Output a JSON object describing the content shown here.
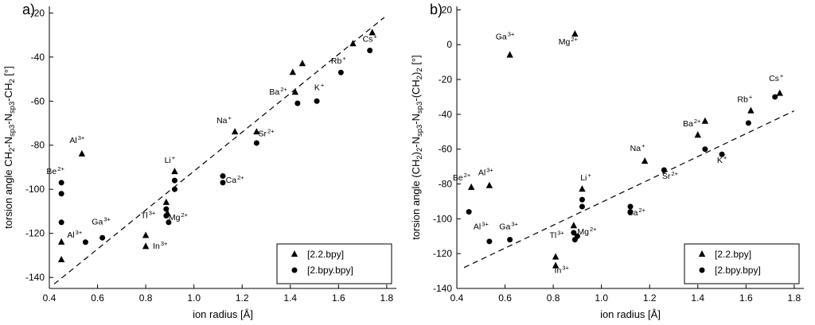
{
  "figure": {
    "background": "#ffffff",
    "foreground": "#000000"
  },
  "chart_data": [
    {
      "type": "scatter",
      "panel_letter": "a)",
      "xlabel": "ion radius [Å]",
      "ylabel_segments": [
        {
          "t": "torsion angle CH"
        },
        {
          "t": "2",
          "sub": true
        },
        {
          "t": "-N"
        },
        {
          "t": "sp3",
          "sub": true
        },
        {
          "t": "-N"
        },
        {
          "t": "sp3",
          "sub": true
        },
        {
          "t": "-CH"
        },
        {
          "t": "2",
          "sub": true
        },
        {
          "t": " [°]"
        }
      ],
      "xlim": [
        0.4,
        1.84
      ],
      "ylim": [
        -145,
        -17
      ],
      "xticks": [
        0.4,
        0.6,
        0.8,
        1.0,
        1.2,
        1.4,
        1.6,
        1.8
      ],
      "yticks": [
        -140,
        -120,
        -100,
        -80,
        -60,
        -40,
        -20
      ],
      "grid": false,
      "trendline": {
        "style": "dashed",
        "x1": 0.42,
        "y1": -143,
        "x2": 1.79,
        "y2": -22
      },
      "legend": {
        "position": "bottom-right",
        "items": [
          {
            "marker": "triangle",
            "label": "[2.2.bpy]"
          },
          {
            "marker": "circle",
            "label": "[2.bpy.bpy]"
          }
        ]
      },
      "series": [
        {
          "name": "[2.2.bpy]",
          "marker": "triangle",
          "points": [
            {
              "ion": "Be2+",
              "x": 0.45,
              "y": -124
            },
            {
              "ion": "Be2+",
              "x": 0.45,
              "y": -132
            },
            {
              "ion": "Al3+",
              "x": 0.535,
              "y": -84
            },
            {
              "ion": "In3+",
              "x": 0.8,
              "y": -121
            },
            {
              "ion": "In3+",
              "x": 0.8,
              "y": -126
            },
            {
              "ion": "Tl3+",
              "x": 0.885,
              "y": -106
            },
            {
              "ion": "Mg2+",
              "x": 0.89,
              "y": -111
            },
            {
              "ion": "Li+",
              "x": 0.92,
              "y": -92
            },
            {
              "ion": "Na+",
              "x": 1.17,
              "y": -74
            },
            {
              "ion": "Sr2+",
              "x": 1.26,
              "y": -74
            },
            {
              "ion": "Ba2+",
              "x": 1.42,
              "y": -56
            },
            {
              "ion": "Ba2+",
              "x": 1.41,
              "y": -47
            },
            {
              "ion": "K+",
              "x": 1.45,
              "y": -43
            },
            {
              "ion": "Rb+",
              "x": 1.66,
              "y": -34
            },
            {
              "ion": "Cs+",
              "x": 1.74,
              "y": -29
            }
          ]
        },
        {
          "name": "[2.bpy.bpy]",
          "marker": "circle",
          "points": [
            {
              "ion": "Be2+",
              "x": 0.45,
              "y": -97
            },
            {
              "ion": "Be2+",
              "x": 0.45,
              "y": -102
            },
            {
              "ion": "Be2+",
              "x": 0.45,
              "y": -115
            },
            {
              "ion": "Al3+",
              "x": 0.55,
              "y": -124
            },
            {
              "ion": "Ga3+",
              "x": 0.62,
              "y": -122
            },
            {
              "ion": "Tl3+",
              "x": 0.885,
              "y": -109
            },
            {
              "ion": "Tl3+",
              "x": 0.885,
              "y": -112
            },
            {
              "ion": "Mg2+",
              "x": 0.895,
              "y": -115
            },
            {
              "ion": "Li+",
              "x": 0.92,
              "y": -96
            },
            {
              "ion": "Li+",
              "x": 0.92,
              "y": -100
            },
            {
              "ion": "Ca2+",
              "x": 1.12,
              "y": -94
            },
            {
              "ion": "Ca2+",
              "x": 1.12,
              "y": -97
            },
            {
              "ion": "Sr2+",
              "x": 1.26,
              "y": -79
            },
            {
              "ion": "Ba2+",
              "x": 1.43,
              "y": -61
            },
            {
              "ion": "K+",
              "x": 1.51,
              "y": -60
            },
            {
              "ion": "Rb+",
              "x": 1.61,
              "y": -47
            },
            {
              "ion": "Cs+",
              "x": 1.73,
              "y": -37
            }
          ]
        }
      ],
      "ion_labels": [
        {
          "base": "Be",
          "sup": "2+",
          "x": 0.425,
          "y": -93
        },
        {
          "base": "Al",
          "sup": "3+",
          "x": 0.515,
          "y": -79
        },
        {
          "base": "Al",
          "sup": "3+",
          "x": 0.505,
          "y": -122
        },
        {
          "base": "Ga",
          "sup": "3+",
          "x": 0.615,
          "y": -116
        },
        {
          "base": "Tl",
          "sup": "3+",
          "x": 0.81,
          "y": -113
        },
        {
          "base": "In",
          "sup": "3+",
          "x": 0.86,
          "y": -127
        },
        {
          "base": "Mg",
          "sup": "2+",
          "x": 0.935,
          "y": -114
        },
        {
          "base": "Li",
          "sup": "+",
          "x": 0.9,
          "y": -88
        },
        {
          "base": "Na",
          "sup": "+",
          "x": 1.125,
          "y": -70
        },
        {
          "base": "Ca",
          "sup": "2+",
          "x": 1.17,
          "y": -97
        },
        {
          "base": "Sr",
          "sup": "2+",
          "x": 1.3,
          "y": -76
        },
        {
          "base": "Ba",
          "sup": "2+",
          "x": 1.35,
          "y": -57
        },
        {
          "base": "K",
          "sup": "+",
          "x": 1.52,
          "y": -55
        },
        {
          "base": "Rb",
          "sup": "+",
          "x": 1.6,
          "y": -43
        },
        {
          "base": "Cs",
          "sup": "+",
          "x": 1.73,
          "y": -33
        }
      ]
    },
    {
      "type": "scatter",
      "panel_letter": "b)",
      "xlabel": "ion radius [Å]",
      "ylabel_segments": [
        {
          "t": "torsion angle (CH"
        },
        {
          "t": "2",
          "sub": true
        },
        {
          "t": ")"
        },
        {
          "t": "2",
          "sub": true
        },
        {
          "t": "-N"
        },
        {
          "t": "sp3",
          "sub": true
        },
        {
          "t": "-N"
        },
        {
          "t": "sp3",
          "sub": true
        },
        {
          "t": "-(CH"
        },
        {
          "t": "2",
          "sub": true
        },
        {
          "t": ")"
        },
        {
          "t": "2",
          "sub": true
        },
        {
          "t": " [°]"
        }
      ],
      "xlim": [
        0.4,
        1.84
      ],
      "ylim": [
        -140,
        22
      ],
      "xticks": [
        0.4,
        0.6,
        0.8,
        1.0,
        1.2,
        1.4,
        1.6,
        1.8
      ],
      "yticks": [
        -140,
        -120,
        -100,
        -80,
        -60,
        -40,
        -20,
        0,
        20
      ],
      "grid": false,
      "trendline": {
        "style": "dashed",
        "x1": 0.43,
        "y1": -128,
        "x2": 1.8,
        "y2": -38
      },
      "legend": {
        "position": "bottom-right",
        "items": [
          {
            "marker": "triangle",
            "label": "[2.2.bpy]"
          },
          {
            "marker": "circle",
            "label": "[2.bpy.bpy]"
          }
        ]
      },
      "series": [
        {
          "name": "[2.2.bpy]",
          "marker": "triangle",
          "points": [
            {
              "ion": "Ga3+",
              "x": 0.62,
              "y": -6
            },
            {
              "ion": "Mg2+",
              "x": 0.89,
              "y": 6
            },
            {
              "ion": "Be2+",
              "x": 0.46,
              "y": -82
            },
            {
              "ion": "Al3+",
              "x": 0.535,
              "y": -81
            },
            {
              "ion": "Li+",
              "x": 0.92,
              "y": -83
            },
            {
              "ion": "Tl3+",
              "x": 0.885,
              "y": -104
            },
            {
              "ion": "In3+",
              "x": 0.81,
              "y": -122
            },
            {
              "ion": "In3+",
              "x": 0.81,
              "y": -127
            },
            {
              "ion": "Na+",
              "x": 1.18,
              "y": -67
            },
            {
              "ion": "Ba2+",
              "x": 1.4,
              "y": -52
            },
            {
              "ion": "Ba2+",
              "x": 1.43,
              "y": -44
            },
            {
              "ion": "Rb+",
              "x": 1.62,
              "y": -38
            },
            {
              "ion": "Cs+",
              "x": 1.74,
              "y": -28
            }
          ]
        },
        {
          "name": "[2.bpy.bpy]",
          "marker": "circle",
          "points": [
            {
              "ion": "Be2+",
              "x": 0.45,
              "y": -96
            },
            {
              "ion": "Al3+",
              "x": 0.535,
              "y": -113
            },
            {
              "ion": "Ga3+",
              "x": 0.62,
              "y": -112
            },
            {
              "ion": "Tl3+",
              "x": 0.885,
              "y": -108
            },
            {
              "ion": "Tl3+",
              "x": 0.89,
              "y": -112
            },
            {
              "ion": "Mg2+",
              "x": 0.9,
              "y": -110
            },
            {
              "ion": "Li+",
              "x": 0.92,
              "y": -89
            },
            {
              "ion": "Li+",
              "x": 0.92,
              "y": -93
            },
            {
              "ion": "Ca2+",
              "x": 1.12,
              "y": -93
            },
            {
              "ion": "Ca2+",
              "x": 1.12,
              "y": -96
            },
            {
              "ion": "Sr2+",
              "x": 1.26,
              "y": -72
            },
            {
              "ion": "Ba2+",
              "x": 1.43,
              "y": -60
            },
            {
              "ion": "K+",
              "x": 1.5,
              "y": -63
            },
            {
              "ion": "Rb+",
              "x": 1.61,
              "y": -45
            },
            {
              "ion": "Cs+",
              "x": 1.72,
              "y": -30
            }
          ]
        }
      ],
      "ion_labels": [
        {
          "base": "Ga",
          "sup": "3+",
          "x": 0.6,
          "y": 3
        },
        {
          "base": "Mg",
          "sup": "2+",
          "x": 0.862,
          "y": 0
        },
        {
          "base": "Be",
          "sup": "2+",
          "x": 0.42,
          "y": -78
        },
        {
          "base": "Al",
          "sup": "3+",
          "x": 0.52,
          "y": -75
        },
        {
          "base": "Al",
          "sup": "3+",
          "x": 0.5,
          "y": -106
        },
        {
          "base": "Ga",
          "sup": "3+",
          "x": 0.615,
          "y": -106
        },
        {
          "base": "Tl",
          "sup": "3+",
          "x": 0.815,
          "y": -111
        },
        {
          "base": "Mg",
          "sup": "2+",
          "x": 0.94,
          "y": -109
        },
        {
          "base": "In",
          "sup": "3+",
          "x": 0.835,
          "y": -131
        },
        {
          "base": "Li",
          "sup": "+",
          "x": 0.935,
          "y": -78
        },
        {
          "base": "Na",
          "sup": "+",
          "x": 1.15,
          "y": -61
        },
        {
          "base": "Ca",
          "sup": "2+",
          "x": 1.145,
          "y": -98
        },
        {
          "base": "Sr",
          "sup": "2+",
          "x": 1.285,
          "y": -77
        },
        {
          "base": "K",
          "sup": "+",
          "x": 1.5,
          "y": -68
        },
        {
          "base": "Ba",
          "sup": "2+",
          "x": 1.375,
          "y": -47
        },
        {
          "base": "Rb",
          "sup": "+",
          "x": 1.595,
          "y": -33
        },
        {
          "base": "Cs",
          "sup": "+",
          "x": 1.725,
          "y": -21
        }
      ]
    }
  ]
}
